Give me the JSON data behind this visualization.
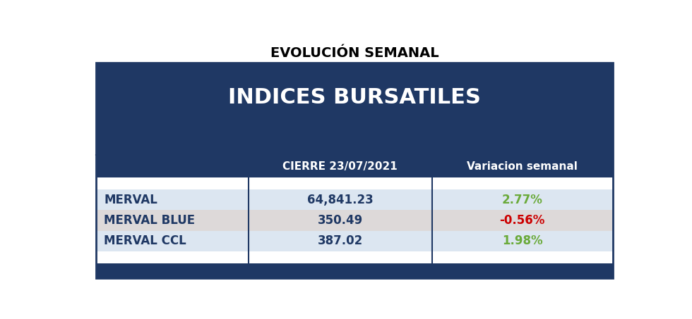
{
  "title": "EVOLUCIÓN SEMANAL",
  "table_title": "INDICES BURSATILES",
  "col_headers": [
    "",
    "CIERRE 23/07/2021",
    "Variacion semanal"
  ],
  "rows": [
    {
      "name": "MERVAL",
      "cierre": "64,841.23",
      "variacion": "2.77%",
      "var_color": "#6aaa3a",
      "row_bg": "#dce6f1"
    },
    {
      "name": "MERVAL BLUE",
      "cierre": "350.49",
      "variacion": "-0.56%",
      "var_color": "#cc0000",
      "row_bg": "#ddd9d9"
    },
    {
      "name": "MERVAL CCL",
      "cierre": "387.02",
      "variacion": "1.98%",
      "var_color": "#6aaa3a",
      "row_bg": "#dce6f1"
    }
  ],
  "header_bg": "#1f3864",
  "header_text_color": "#ffffff",
  "col_header_text_color": "#ffffff",
  "name_text_color": "#1f3864",
  "cierre_text_color": "#1f3864",
  "border_color": "#1f3864",
  "footer_bg": "#1f3864",
  "white_bg": "#ffffff",
  "fig_bg": "#ffffff",
  "title_color": "#000000"
}
